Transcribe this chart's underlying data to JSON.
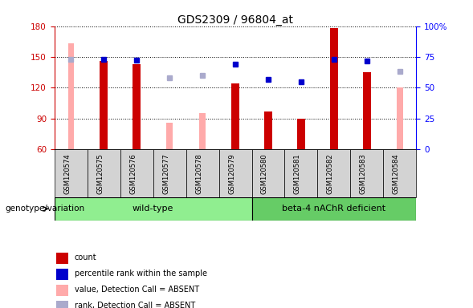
{
  "title": "GDS2309 / 96804_at",
  "samples": [
    "GSM120574",
    "GSM120575",
    "GSM120576",
    "GSM120577",
    "GSM120578",
    "GSM120579",
    "GSM120580",
    "GSM120581",
    "GSM120582",
    "GSM120583",
    "GSM120584"
  ],
  "ylim_left": [
    60,
    180
  ],
  "ylim_right": [
    0,
    100
  ],
  "yticks_left": [
    60,
    90,
    120,
    150,
    180
  ],
  "yticks_right": [
    0,
    25,
    50,
    75,
    100
  ],
  "yticklabels_right": [
    "0",
    "25",
    "50",
    "75",
    "100%"
  ],
  "red_bars": [
    null,
    146,
    143,
    null,
    null,
    124,
    97,
    90,
    178,
    135,
    null
  ],
  "pink_bars": [
    163,
    null,
    null,
    86,
    95,
    null,
    null,
    null,
    null,
    null,
    120
  ],
  "blue_squares": [
    null,
    148,
    147,
    null,
    null,
    143,
    128,
    126,
    148,
    146,
    null
  ],
  "light_blue_squares": [
    148,
    null,
    null,
    130,
    132,
    null,
    null,
    null,
    null,
    null,
    136
  ],
  "group1_label": "wild-type",
  "group1_indices": [
    0,
    1,
    2,
    3,
    4,
    5
  ],
  "group2_label": "beta-4 nAChR deficient",
  "group2_indices": [
    6,
    7,
    8,
    9,
    10
  ],
  "group_label_prefix": "genotype/variation",
  "bar_width": 0.25,
  "pink_bar_width": 0.18,
  "red_color": "#cc0000",
  "pink_color": "#ffaaaa",
  "blue_color": "#0000cc",
  "light_blue_color": "#aaaacc",
  "group1_bg": "#90ee90",
  "group2_bg": "#66cc66",
  "sample_bg": "#d3d3d3",
  "legend_labels": [
    "count",
    "percentile rank within the sample",
    "value, Detection Call = ABSENT",
    "rank, Detection Call = ABSENT"
  ],
  "legend_colors": [
    "#cc0000",
    "#0000cc",
    "#ffaaaa",
    "#aaaacc"
  ]
}
